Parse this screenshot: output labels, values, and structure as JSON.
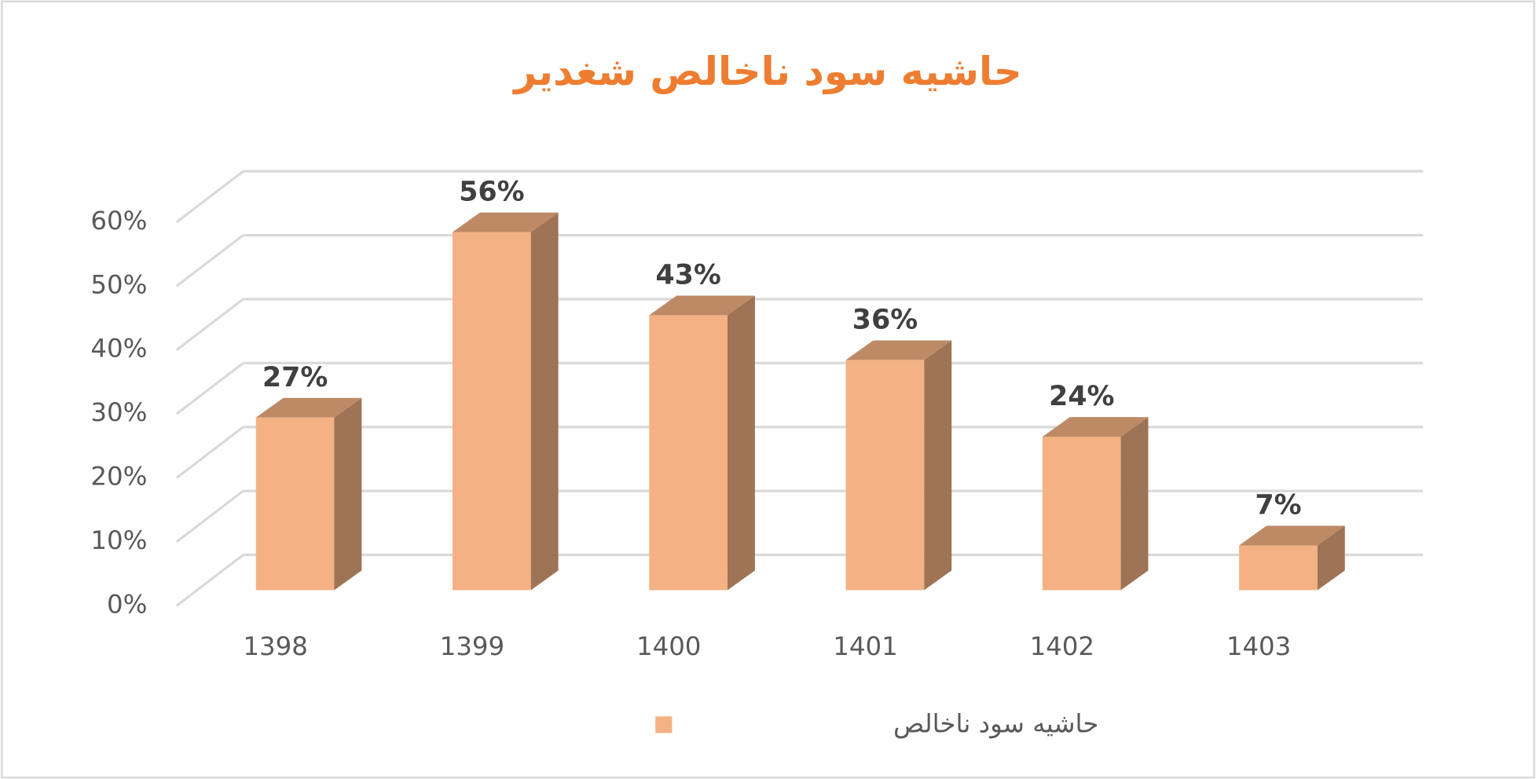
{
  "chart_data": {
    "type": "bar3d",
    "title": "حاشیه سود ناخالص شغدیر",
    "categories": [
      "1398",
      "1399",
      "1400",
      "1401",
      "1402",
      "1403"
    ],
    "series": [
      {
        "name": "حاشیه سود  ناخالص",
        "color": "#f4b183",
        "values": [
          27,
          56,
          43,
          36,
          24,
          7
        ],
        "value_labels": [
          "27%",
          "56%",
          "43%",
          "36%",
          "24%",
          "7%"
        ]
      }
    ],
    "ylim": [
      0,
      60
    ],
    "yticks": [
      {
        "value": 0,
        "label": "0%"
      },
      {
        "value": 10,
        "label": "10%"
      },
      {
        "value": 20,
        "label": "20%"
      },
      {
        "value": 30,
        "label": "30%"
      },
      {
        "value": 40,
        "label": "40%"
      },
      {
        "value": 50,
        "label": "50%"
      },
      {
        "value": 60,
        "label": "60%"
      }
    ],
    "grid": true,
    "legend": "bottom"
  }
}
